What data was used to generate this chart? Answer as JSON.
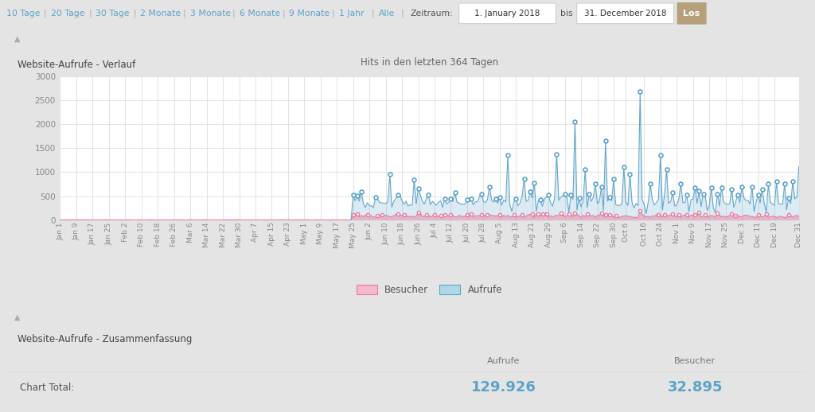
{
  "title_top": "Website-Aufrufe - Verlauf",
  "subtitle": "Hits in den letzten 364 Tagen",
  "nav_items": [
    "10 Tage",
    "20 Tage",
    "30 Tage",
    "2 Monate",
    "3 Monate",
    "6 Monate",
    "9 Monate",
    "1 Jahr",
    "Alle"
  ],
  "nav_label": "Zeitraum:",
  "nav_from": "1. January 2018",
  "nav_to": "31. December 2018",
  "nav_button": "Los",
  "section2_title": "Website-Aufrufe - Zusammenfassung",
  "col1_header": "Aufrufe",
  "col2_header": "Besucher",
  "row_label": "Chart Total:",
  "aufrufe_total": "129.926",
  "besucher_total": "32.895",
  "aufrufe_color": "#5ba3c9",
  "besucher_color": "#e87a9b",
  "aufrufe_fill": "#add8e6",
  "besucher_fill": "#f5b8cc",
  "ylim": [
    0,
    3000
  ],
  "yticks": [
    0,
    500,
    1000,
    1500,
    2000,
    2500,
    3000
  ],
  "bg_color": "#ffffff",
  "outer_bg": "#e4e4e4",
  "nav_bg": "#f0f0f0",
  "nav_color": "#5ba3c9",
  "nav_sep_color": "#aaaaaa",
  "nav_text_color": "#555555",
  "button_bg": "#b5a07a",
  "input_bg": "#ffffff",
  "input_border": "#cccccc",
  "legend_besucher": "Besucher",
  "legend_aufrufe": "Aufrufe",
  "grid_color": "#dddddd",
  "tick_color": "#888888",
  "panel_border": "#dddddd",
  "title_color": "#444444",
  "subtitle_color": "#666666",
  "total_color_aufrufe": "#5ba3c9",
  "total_color_besucher": "#5ba3c9",
  "x_labels": [
    "Jan 1",
    "Jan 9",
    "Jan 17",
    "Jan 25",
    "Feb 2",
    "Feb 10",
    "Feb 18",
    "Feb 26",
    "Mar 6",
    "Mar 14",
    "Mar 22",
    "Mar 30",
    "Apr 7",
    "Apr 15",
    "Apr 23",
    "May 1",
    "May 9",
    "May 17",
    "May 25",
    "Jun 2",
    "Jun 10",
    "Jun 18",
    "Jun 26",
    "Jul 4",
    "Jul 12",
    "Jul 20",
    "Jul 28",
    "Aug 5",
    "Aug 13",
    "Aug 21",
    "Aug 29",
    "Sep 6",
    "Sep 14",
    "Sep 22",
    "Sep 30",
    "Oct 6",
    "Oct 16",
    "Oct 24",
    "Nov 1",
    "Nov 9",
    "Nov 17",
    "Nov 25",
    "Dec 3",
    "Dec 11",
    "Dec 19",
    "Dec 31"
  ],
  "x_tick_positions": [
    0,
    8,
    16,
    24,
    32,
    40,
    48,
    56,
    64,
    72,
    80,
    88,
    96,
    104,
    112,
    120,
    128,
    136,
    144,
    152,
    160,
    168,
    176,
    184,
    192,
    200,
    208,
    216,
    224,
    232,
    240,
    248,
    256,
    264,
    272,
    278,
    287,
    295,
    303,
    311,
    319,
    327,
    335,
    343,
    351,
    363
  ]
}
